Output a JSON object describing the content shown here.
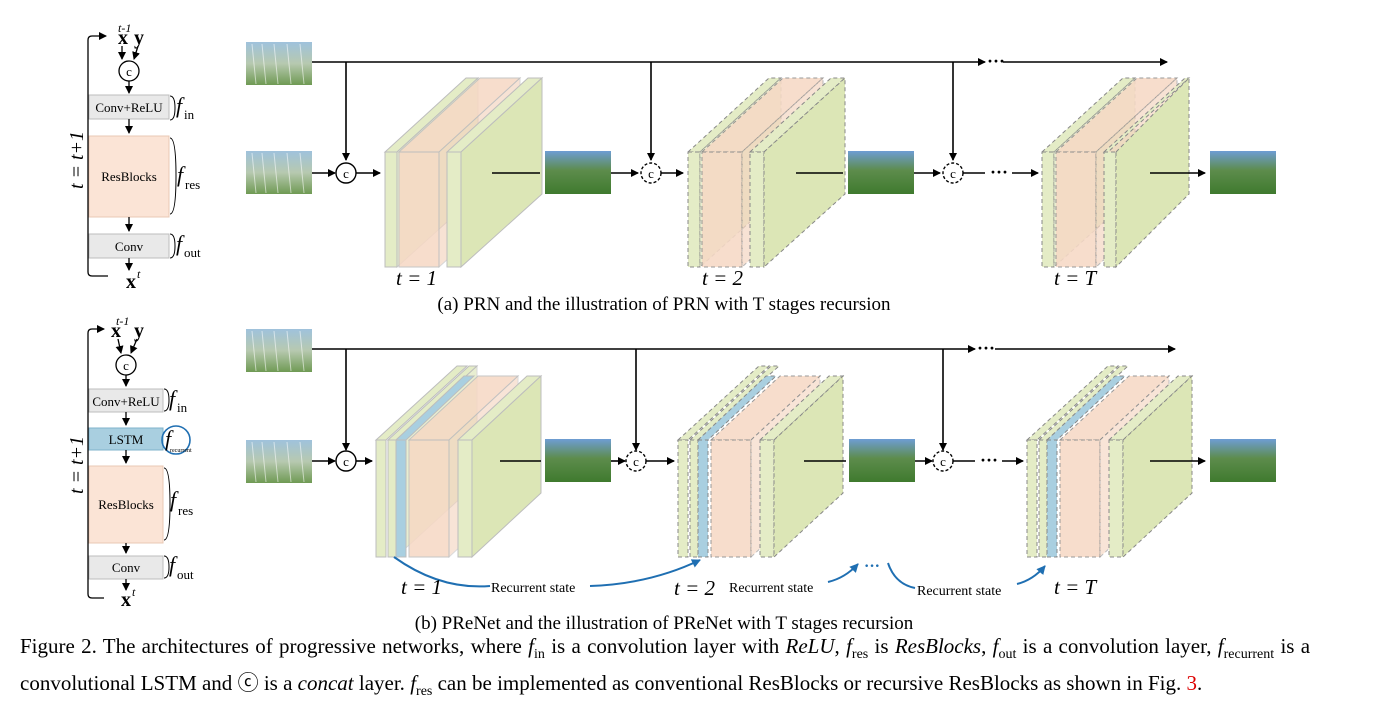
{
  "panel_a": {
    "caption": "(a) PRN and the illustration of PRN with T stages recursion",
    "stage_labels": [
      "t = 1",
      "t = 2",
      "t = T"
    ],
    "block": {
      "input": "x",
      "input_sup": "t-1",
      "y": "y",
      "concat": "c",
      "conv_relu": "Conv+ReLU",
      "resblocks": "ResBlocks",
      "conv": "Conv",
      "output": "x",
      "output_sup": "t",
      "f_in": "in",
      "f_res": "res",
      "f_out": "out",
      "loop": "t = t+1"
    }
  },
  "panel_b": {
    "caption": "(b) PReNet and the illustration of PReNet with T stages recursion",
    "stage_labels": [
      "t = 1",
      "t = 2",
      "t = T"
    ],
    "recurrent_state": "Recurrent state",
    "ellipsis": "···",
    "block": {
      "lstm": "LSTM",
      "f_recurrent": "recurrent"
    }
  },
  "figure_caption": {
    "prefix": "Figure 2. The architectures of progressive networks, where",
    "text_1": "is a convolution layer with",
    "relu": "ReLU",
    "text_2": "is",
    "resblocks": "ResBlocks",
    "text_3": "is a convolution layer,",
    "text_4": "is a convolutional LSTM and",
    "text_5": "is a",
    "concat": "concat",
    "text_6": "layer.",
    "text_7": "can be implemented as conventional ResBlocks or recursive ResBlocks as shown in Fig.",
    "fig_ref": "3",
    "end": "."
  },
  "colors": {
    "green": "#e4ecc6",
    "orange": "#f6d8c4",
    "blue": "#a9cfe0",
    "resbox": "#fbe4d6",
    "gray": "#e9e9e9",
    "arrow": "#000000",
    "recurrent_arrow": "#1f6fb2"
  }
}
